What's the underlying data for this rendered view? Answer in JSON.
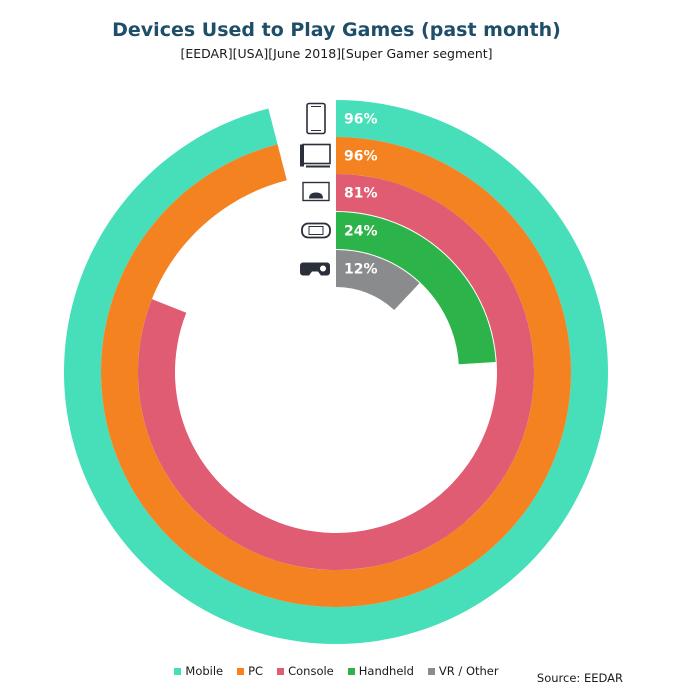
{
  "chart_data": {
    "type": "radial-bar",
    "title": "Devices Used to Play Games (past month)",
    "subtitle": "[EEDAR][USA][June 2018][Super Gamer segment]",
    "unit": "%",
    "max": 100,
    "series": [
      {
        "name": "Mobile",
        "value": 96,
        "label": "96%",
        "color": "#46dfb9",
        "icon": "smartphone-icon"
      },
      {
        "name": "PC",
        "value": 96,
        "label": "96%",
        "color": "#f48220",
        "icon": "pc-monitor-icon"
      },
      {
        "name": "Console",
        "value": 81,
        "label": "81%",
        "color": "#e05c73",
        "icon": "console-icon"
      },
      {
        "name": "Handheld",
        "value": 24,
        "label": "24%",
        "color": "#2cb34a",
        "icon": "handheld-icon"
      },
      {
        "name": "VR / Other",
        "value": 12,
        "label": "12%",
        "color": "#8a8b8d",
        "icon": "vr-headset-icon"
      }
    ],
    "legend_position": "bottom",
    "source": "Source: EEDAR"
  }
}
